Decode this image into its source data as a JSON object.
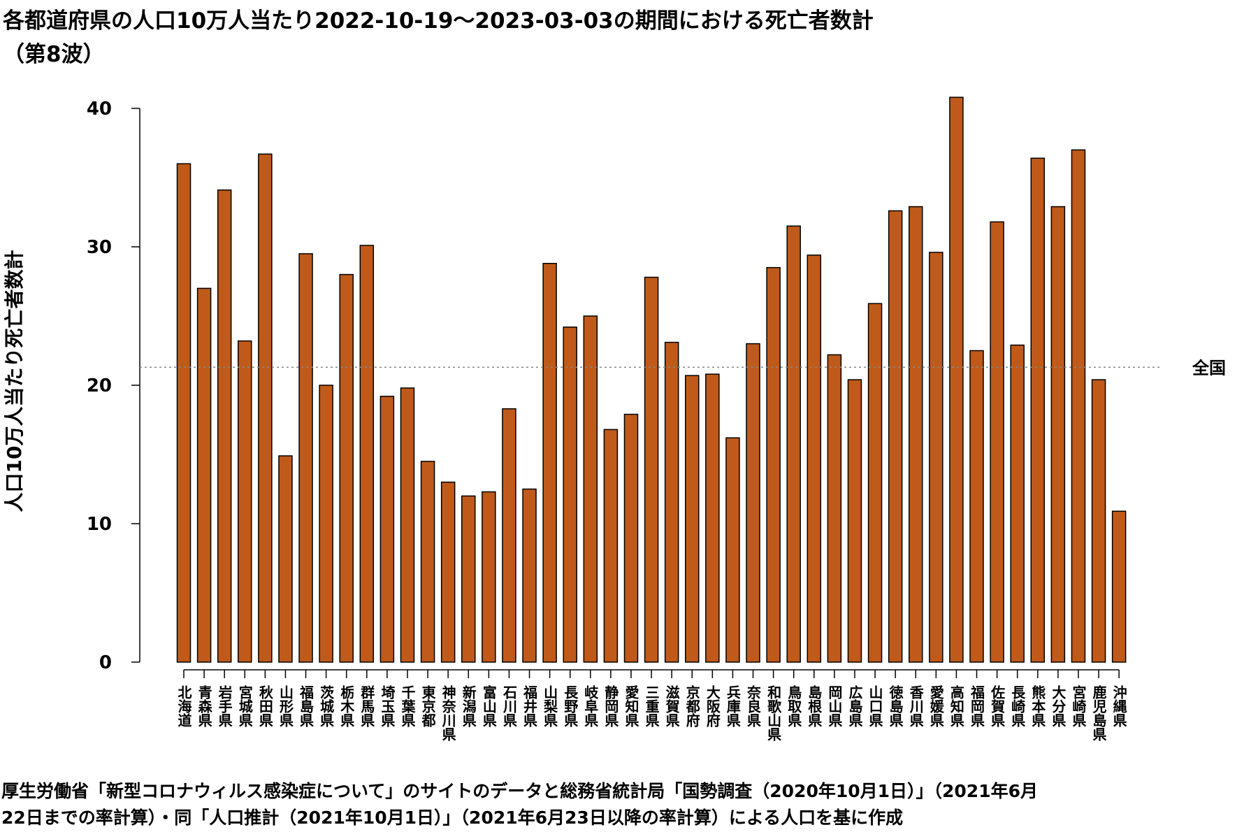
{
  "title": "各都道府県の人口10万人当たり2022-10-19～2023-03-03の期間における死亡者数計",
  "subtitle": "（第8波）",
  "source_line1": "厚生労働省「新型コロナウィルス感染症について」のサイトのデータと総務省統計局「国勢調査（2020年10月1日）」（2021年6月",
  "source_line2": "22日までの率計算）・同「人口推計（2021年10月1日）」（2021年6月23日以降の率計算）による人口を基に作成",
  "colors": {
    "bar": "#c05a1a",
    "bar_stroke": "#000000",
    "ref_line": "#888888"
  },
  "chart_data": {
    "type": "bar",
    "title": "各都道府県の人口10万人当たり2022-10-19～2023-03-03の期間における死亡者数計（第8波）",
    "ylabel": "人口10万人当たり死亡者数計",
    "xlabel": "",
    "ylim": [
      0,
      40
    ],
    "yticks": [
      0,
      10,
      20,
      30,
      40
    ],
    "grid": false,
    "categories": [
      "北海道",
      "青森県",
      "岩手県",
      "宮城県",
      "秋田県",
      "山形県",
      "福島県",
      "茨城県",
      "栃木県",
      "群馬県",
      "埼玉県",
      "千葉県",
      "東京都",
      "神奈川県",
      "新潟県",
      "富山県",
      "石川県",
      "福井県",
      "山梨県",
      "長野県",
      "岐阜県",
      "静岡県",
      "愛知県",
      "三重県",
      "滋賀県",
      "京都府",
      "大阪府",
      "兵庫県",
      "奈良県",
      "和歌山県",
      "鳥取県",
      "島根県",
      "岡山県",
      "広島県",
      "山口県",
      "徳島県",
      "香川県",
      "愛媛県",
      "高知県",
      "福岡県",
      "佐賀県",
      "長崎県",
      "熊本県",
      "大分県",
      "宮崎県",
      "鹿児島県",
      "沖縄県"
    ],
    "values": [
      36.0,
      27.0,
      34.1,
      23.2,
      36.7,
      14.9,
      29.5,
      20.0,
      28.0,
      30.1,
      19.2,
      19.8,
      14.5,
      13.0,
      12.0,
      12.3,
      18.3,
      12.5,
      28.8,
      24.2,
      25.0,
      16.8,
      17.9,
      27.8,
      23.1,
      20.7,
      20.8,
      16.2,
      23.0,
      28.5,
      31.5,
      29.4,
      22.2,
      20.4,
      25.9,
      32.6,
      32.9,
      29.6,
      40.8,
      22.5,
      31.8,
      22.9,
      36.4,
      32.9,
      37.0,
      20.4,
      10.9
    ],
    "reference_line": {
      "label": "全国",
      "value": 21.3
    }
  }
}
